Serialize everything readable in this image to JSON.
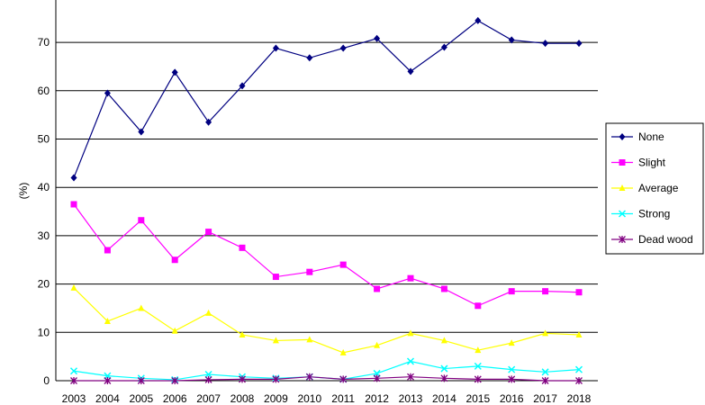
{
  "chart_data": {
    "type": "line",
    "ylabel": "(%)",
    "ylim": [
      0,
      75
    ],
    "yticks": [
      0,
      10,
      20,
      30,
      40,
      50,
      60,
      70
    ],
    "grid": true,
    "legend_placement": "right",
    "x": [
      "2003",
      "2004",
      "2005",
      "2006",
      "2007",
      "2008",
      "2009",
      "2010",
      "2011",
      "2012",
      "2013",
      "2014",
      "2015",
      "2016",
      "2017",
      "2018"
    ],
    "series": [
      {
        "name": "None",
        "color": "#000080",
        "marker": "diamond",
        "values": [
          42,
          59.5,
          51.5,
          63.8,
          53.5,
          61,
          68.8,
          66.8,
          68.8,
          70.8,
          64,
          69,
          74.5,
          70.5,
          69.8,
          69.8
        ]
      },
      {
        "name": "Slight",
        "color": "#ff00ff",
        "marker": "square",
        "values": [
          36.5,
          27,
          33.2,
          25,
          30.8,
          27.5,
          21.5,
          22.5,
          24,
          19,
          21.2,
          19,
          15.5,
          18.5,
          18.5,
          18.3
        ]
      },
      {
        "name": "Average",
        "color": "#ffff00",
        "marker": "triangle",
        "values": [
          19.2,
          12.3,
          15,
          10.3,
          14,
          9.5,
          8.3,
          8.5,
          5.8,
          7.3,
          9.8,
          8.3,
          6.3,
          7.8,
          9.8,
          9.5
        ]
      },
      {
        "name": "Strong",
        "color": "#00ffff",
        "marker": "x",
        "values": [
          2,
          1,
          0.5,
          0.2,
          1.3,
          0.8,
          0.5,
          0.8,
          0.3,
          1.5,
          4,
          2.5,
          3,
          2.3,
          1.8,
          2.3
        ]
      },
      {
        "name": "Dead wood",
        "color": "#800080",
        "marker": "star",
        "values": [
          0,
          0,
          0,
          0,
          0.2,
          0.3,
          0.3,
          0.8,
          0.3,
          0.5,
          0.8,
          0.5,
          0.3,
          0.3,
          0,
          0
        ]
      }
    ]
  }
}
